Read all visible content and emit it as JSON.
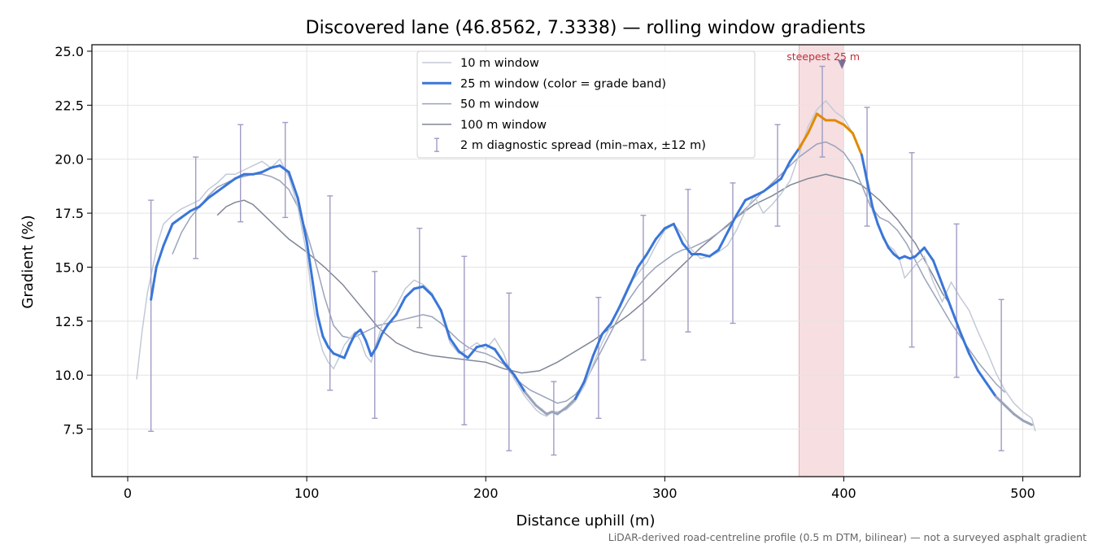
{
  "chart_data": {
    "type": "line",
    "title": "Discovered lane (46.8562, 7.3338) — rolling window gradients",
    "xlabel": "Distance uphill (m)",
    "ylabel": "Gradient (%)",
    "xlim": [
      -20,
      532
    ],
    "ylim": [
      5.3,
      25.3
    ],
    "xticks": [
      0,
      100,
      200,
      300,
      400,
      500
    ],
    "yticks": [
      7.5,
      10.0,
      12.5,
      15.0,
      17.5,
      20.0,
      22.5,
      25.0
    ],
    "grid": true,
    "legend_position": "top-center",
    "footnote": "LiDAR-derived road-centreline profile (0.5 m DTM, bilinear) — not a surveyed asphalt gradient",
    "colors": {
      "w10": "#c3cad6",
      "w25": "#3a76d8",
      "w25_steep": "#e08a00",
      "w50": "#9aa3ba",
      "w100": "#7f8696",
      "errorbar": "#9f9cc3",
      "highlight": "#e4a0a8",
      "annotation": "#c0303a"
    },
    "highlight_span": {
      "x": [
        375,
        400
      ],
      "label": "steepest 25 m",
      "marker_x": 399,
      "marker_y": 24.4
    },
    "series": [
      {
        "name": "10 m window",
        "key": "w10",
        "x": [
          5,
          8,
          11,
          14,
          17,
          20,
          25,
          30,
          35,
          40,
          45,
          50,
          55,
          60,
          65,
          70,
          75,
          80,
          85,
          90,
          95,
          100,
          103,
          106,
          109,
          112,
          115,
          118,
          121,
          124,
          127,
          130,
          133,
          136,
          139,
          142,
          145,
          150,
          155,
          160,
          165,
          170,
          175,
          180,
          185,
          190,
          195,
          200,
          205,
          210,
          213,
          216,
          219,
          222,
          225,
          228,
          231,
          234,
          237,
          240,
          245,
          250,
          255,
          260,
          265,
          270,
          275,
          280,
          285,
          290,
          295,
          300,
          305,
          310,
          315,
          320,
          325,
          330,
          335,
          340,
          345,
          350,
          355,
          360,
          365,
          370,
          375,
          380,
          385,
          390,
          395,
          400,
          405,
          410,
          413,
          416,
          419,
          422,
          425,
          428,
          431,
          434,
          437,
          440,
          445,
          450,
          455,
          460,
          465,
          470,
          475,
          480,
          485,
          490,
          495,
          500,
          505,
          507
        ],
        "y": [
          9.8,
          12.0,
          13.8,
          15.0,
          16.2,
          17.0,
          17.4,
          17.7,
          17.9,
          18.1,
          18.6,
          18.9,
          19.3,
          19.3,
          19.5,
          19.7,
          19.9,
          19.6,
          20.0,
          19.2,
          17.8,
          15.6,
          13.6,
          12.0,
          11.1,
          10.6,
          10.3,
          10.8,
          11.4,
          11.7,
          12.0,
          11.6,
          10.9,
          10.6,
          11.5,
          12.3,
          12.6,
          13.2,
          14.0,
          14.4,
          14.2,
          13.8,
          12.9,
          11.5,
          11.0,
          11.2,
          11.5,
          11.2,
          11.7,
          11.0,
          10.3,
          9.8,
          9.4,
          9.0,
          8.7,
          8.4,
          8.2,
          8.1,
          8.3,
          8.3,
          8.4,
          8.8,
          9.5,
          10.5,
          11.5,
          12.3,
          13.3,
          14.2,
          14.7,
          15.2,
          16.0,
          16.7,
          17.0,
          16.5,
          15.8,
          15.4,
          15.5,
          15.7,
          16.0,
          16.7,
          17.6,
          18.3,
          17.5,
          17.9,
          18.4,
          19.0,
          20.2,
          21.5,
          22.3,
          22.7,
          22.2,
          21.9,
          21.2,
          20.2,
          18.8,
          17.6,
          17.0,
          16.3,
          16.0,
          15.8,
          15.4,
          14.5,
          14.8,
          15.1,
          15.5,
          14.3,
          13.4,
          14.3,
          13.6,
          13.0,
          12.0,
          11.1,
          10.1,
          9.3,
          8.7,
          8.3,
          8.0,
          7.4
        ]
      },
      {
        "name": "25 m window (color = grade band)",
        "key": "w25",
        "x": [
          13,
          16,
          20,
          25,
          30,
          35,
          40,
          45,
          50,
          55,
          60,
          65,
          70,
          75,
          80,
          85,
          90,
          95,
          100,
          103,
          106,
          109,
          112,
          115,
          118,
          121,
          124,
          127,
          130,
          133,
          136,
          139,
          142,
          145,
          150,
          155,
          160,
          165,
          170,
          175,
          180,
          185,
          190,
          195,
          200,
          205,
          210,
          213,
          216,
          219,
          222,
          225,
          228,
          231,
          234,
          237,
          240,
          245,
          250,
          255,
          260,
          265,
          270,
          275,
          280,
          285,
          290,
          295,
          300,
          305,
          310,
          315,
          320,
          325,
          330,
          335,
          340,
          345,
          350,
          355,
          360,
          365,
          370,
          375,
          380,
          385,
          390,
          395,
          400,
          405,
          410,
          413,
          416,
          419,
          422,
          425,
          428,
          431,
          434,
          437,
          440,
          445,
          450,
          455,
          460,
          465,
          470,
          475,
          480,
          485,
          490,
          495,
          500,
          505
        ],
        "y": [
          13.5,
          15.0,
          16.0,
          17.0,
          17.3,
          17.6,
          17.8,
          18.2,
          18.5,
          18.8,
          19.1,
          19.3,
          19.3,
          19.4,
          19.6,
          19.7,
          19.4,
          18.2,
          16.2,
          14.5,
          12.8,
          11.8,
          11.3,
          11.0,
          10.9,
          10.8,
          11.4,
          11.9,
          12.1,
          11.6,
          10.9,
          11.3,
          11.9,
          12.3,
          12.8,
          13.6,
          14.0,
          14.1,
          13.7,
          13.0,
          11.7,
          11.1,
          10.8,
          11.3,
          11.4,
          11.2,
          10.6,
          10.3,
          10.0,
          9.6,
          9.2,
          8.9,
          8.6,
          8.4,
          8.2,
          8.3,
          8.2,
          8.5,
          8.9,
          9.7,
          10.9,
          11.9,
          12.4,
          13.2,
          14.1,
          15.0,
          15.6,
          16.3,
          16.8,
          17.0,
          16.1,
          15.6,
          15.6,
          15.5,
          15.8,
          16.6,
          17.4,
          18.1,
          18.3,
          18.5,
          18.8,
          19.1,
          19.9,
          20.5,
          21.2,
          22.1,
          21.8,
          21.8,
          21.6,
          21.2,
          20.2,
          19.0,
          17.8,
          17.0,
          16.4,
          15.9,
          15.6,
          15.4,
          15.5,
          15.4,
          15.5,
          15.9,
          15.3,
          14.2,
          13.1,
          12.0,
          11.0,
          10.2,
          9.6,
          9.0,
          8.6,
          8.2,
          7.9,
          7.7
        ]
      },
      {
        "name": "50 m window",
        "key": "w50",
        "x": [
          25,
          30,
          35,
          40,
          45,
          50,
          55,
          60,
          65,
          70,
          75,
          80,
          85,
          90,
          95,
          100,
          105,
          110,
          115,
          120,
          125,
          130,
          135,
          140,
          145,
          150,
          155,
          160,
          165,
          170,
          175,
          180,
          185,
          190,
          195,
          200,
          205,
          210,
          215,
          220,
          225,
          230,
          235,
          240,
          245,
          250,
          255,
          260,
          265,
          270,
          275,
          280,
          285,
          290,
          295,
          300,
          305,
          310,
          315,
          320,
          325,
          330,
          335,
          340,
          345,
          350,
          355,
          360,
          365,
          370,
          375,
          380,
          385,
          390,
          395,
          400,
          405,
          410,
          415,
          420,
          425,
          430,
          435,
          440,
          445,
          450,
          455,
          460,
          465,
          470,
          475,
          480,
          485,
          490
        ],
        "y": [
          15.6,
          16.6,
          17.3,
          17.8,
          18.3,
          18.7,
          18.9,
          19.1,
          19.2,
          19.3,
          19.3,
          19.2,
          19.0,
          18.6,
          17.8,
          16.6,
          15.2,
          13.6,
          12.3,
          11.8,
          11.7,
          11.9,
          12.1,
          12.3,
          12.4,
          12.5,
          12.6,
          12.7,
          12.8,
          12.7,
          12.4,
          12.0,
          11.6,
          11.3,
          11.1,
          11.0,
          10.8,
          10.5,
          10.0,
          9.6,
          9.3,
          9.1,
          8.9,
          8.7,
          8.8,
          9.1,
          9.6,
          10.4,
          11.2,
          12.0,
          12.8,
          13.5,
          14.1,
          14.6,
          15.0,
          15.3,
          15.6,
          15.8,
          15.9,
          16.1,
          16.3,
          16.6,
          16.9,
          17.3,
          17.7,
          18.1,
          18.5,
          18.9,
          19.3,
          19.7,
          20.1,
          20.4,
          20.7,
          20.8,
          20.6,
          20.3,
          19.7,
          18.8,
          17.8,
          17.3,
          17.1,
          16.7,
          16.1,
          15.3,
          14.5,
          13.8,
          13.1,
          12.4,
          11.8,
          11.2,
          10.6,
          10.1,
          9.6,
          9.2
        ]
      },
      {
        "name": "100 m window",
        "key": "w100",
        "x": [
          50,
          55,
          60,
          65,
          70,
          75,
          80,
          85,
          90,
          95,
          100,
          110,
          120,
          130,
          140,
          150,
          160,
          170,
          180,
          190,
          200,
          210,
          220,
          230,
          240,
          250,
          260,
          270,
          280,
          290,
          300,
          310,
          320,
          330,
          340,
          350,
          360,
          370,
          380,
          390,
          395,
          400,
          405,
          410,
          420,
          430,
          440,
          450,
          455,
          460
        ],
        "y": [
          17.4,
          17.8,
          18.0,
          18.1,
          17.9,
          17.5,
          17.1,
          16.7,
          16.3,
          16.0,
          15.7,
          15.0,
          14.2,
          13.2,
          12.2,
          11.5,
          11.1,
          10.9,
          10.8,
          10.7,
          10.6,
          10.3,
          10.1,
          10.2,
          10.6,
          11.1,
          11.6,
          12.2,
          12.8,
          13.5,
          14.3,
          15.1,
          15.9,
          16.6,
          17.3,
          17.9,
          18.3,
          18.8,
          19.1,
          19.3,
          19.2,
          19.1,
          19.0,
          18.8,
          18.1,
          17.2,
          16.1,
          14.6,
          13.8,
          13.2
        ]
      }
    ],
    "errorbars": {
      "name": "2 m diagnostic spread (min–max, ±12 m)",
      "x": [
        13,
        38,
        63,
        88,
        113,
        138,
        163,
        188,
        213,
        238,
        263,
        288,
        313,
        338,
        363,
        388,
        413,
        438,
        463,
        488
      ],
      "low": [
        7.4,
        15.4,
        17.1,
        17.3,
        9.3,
        8.0,
        12.2,
        7.7,
        6.5,
        6.3,
        8.0,
        10.7,
        12.0,
        12.4,
        16.9,
        20.1,
        16.9,
        11.3,
        9.9,
        6.5
      ],
      "high": [
        18.1,
        20.1,
        21.6,
        21.7,
        18.3,
        14.8,
        16.8,
        15.5,
        13.8,
        9.7,
        13.6,
        17.4,
        18.6,
        18.9,
        21.6,
        24.3,
        22.4,
        20.3,
        17.0,
        13.5
      ]
    }
  }
}
